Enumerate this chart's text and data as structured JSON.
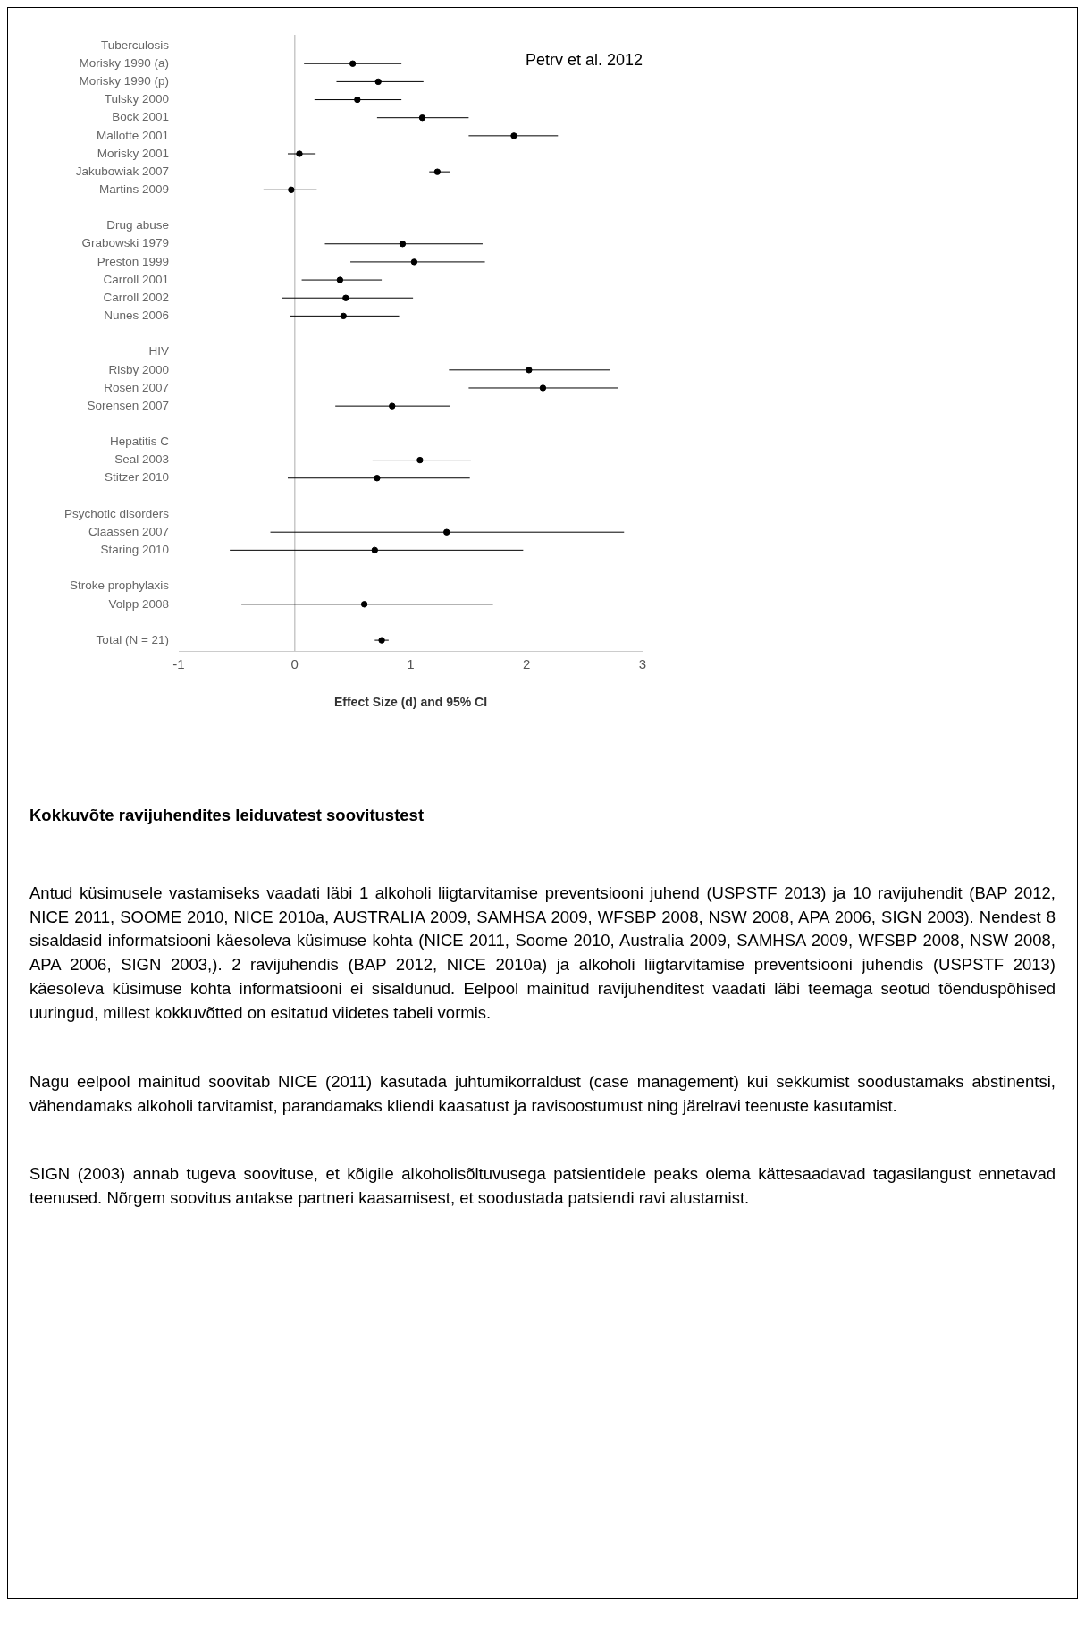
{
  "chart_data": {
    "type": "scatter",
    "orientation": "horizontal",
    "xlabel": "Effect Size (d) and 95% CI",
    "categories": [
      "Tuberculosis",
      "Morisky 1990 (a)",
      "Morisky 1990 (p)",
      "Tulsky 2000",
      "Bock 2001",
      "Mallotte 2001",
      "Morisky 2001",
      "Jakubowiak 2007",
      "Martins 2009",
      null,
      "Drug abuse",
      "Grabowski 1979",
      "Preston 1999",
      "Carroll 2001",
      "Carroll 2002",
      "Nunes 2006",
      null,
      "HIV",
      "Risby 2000",
      "Rosen 2007",
      "Sorensen 2007",
      null,
      "Hepatitis C",
      "Seal 2003",
      "Stitzer 2010",
      null,
      "Psychotic disorders",
      "Claassen 2007",
      "Staring 2010",
      null,
      "Stroke prophylaxis",
      "Volpp 2008",
      null,
      "Total (N = 21)"
    ],
    "values": [
      null,
      0.5,
      0.72,
      0.54,
      1.1,
      1.89,
      0.04,
      1.23,
      -0.03,
      null,
      null,
      0.93,
      1.03,
      0.39,
      0.44,
      0.42,
      null,
      null,
      2.02,
      2.14,
      0.84,
      null,
      null,
      1.08,
      0.71,
      null,
      null,
      1.31,
      0.69,
      null,
      null,
      0.6,
      null,
      0.75
    ],
    "errors": [
      null,
      [
        0.08,
        0.92
      ],
      [
        0.36,
        1.11
      ],
      [
        0.17,
        0.92
      ],
      [
        0.71,
        1.5
      ],
      [
        1.5,
        2.27
      ],
      [
        -0.06,
        0.18
      ],
      [
        1.16,
        1.34
      ],
      [
        -0.27,
        0.19
      ],
      null,
      null,
      [
        0.26,
        1.62
      ],
      [
        0.48,
        1.64
      ],
      [
        0.06,
        0.75
      ],
      [
        -0.11,
        1.02
      ],
      [
        -0.04,
        0.9
      ],
      null,
      null,
      [
        1.33,
        2.72
      ],
      [
        1.5,
        2.79
      ],
      [
        0.35,
        1.34
      ],
      null,
      null,
      [
        0.67,
        1.52
      ],
      [
        -0.06,
        1.51
      ],
      null,
      null,
      [
        -0.21,
        2.84
      ],
      [
        -0.56,
        1.97
      ],
      null,
      null,
      [
        -0.46,
        1.71
      ],
      null,
      [
        0.69,
        0.81
      ]
    ],
    "color": "#000000",
    "marker": "circle",
    "xlim": [
      -1,
      3
    ],
    "xticks": [
      -1,
      0,
      1,
      2,
      3
    ],
    "ref_lines": [
      {
        "axis": "x",
        "value": 0,
        "color": "#c8c8c8"
      }
    ],
    "grid": false,
    "legend": false,
    "annotations": [
      "Petrv et al. 2012",
      "Kokkuvõte ravijuhendites leiduvatest soovitustest",
      "Antud küsimusele vastamiseks vaadati läbi 1 alkoholi liigtarvitamise preventsiooni juhend (USPSTF 2013) ja 10 ravijuhendit (BAP 2012, NICE 2011, SOOME 2010, NICE 2010a,  AUSTRALIA 2009, SAMHSA 2009, WFSBP 2008, NSW 2008, APA 2006, SIGN 2003). Nendest 8 sisaldasid informatsiooni käesoleva küsimuse kohta (NICE 2011, Soome 2010, Australia 2009, SAMHSA 2009, WFSBP 2008, NSW 2008, APA 2006, SIGN 2003,). 2 ravijuhendis (BAP 2012, NICE 2010a) ja alkoholi liigtarvitamise preventsiooni juhendis (USPSTF 2013) käesoleva küsimuse kohta informatsiooni ei sisaldunud. Eelpool mainitud ravijuhenditest vaadati läbi teemaga seotud tõenduspõhised uuringud, millest kokkuvõtted on esitatud viidetes tabeli vormis.",
      "Nagu eelpool mainitud soovitab NICE (2011) kasutada juhtumikorraldust (case management) kui sekkumist soodustamaks abstinentsi, vähendamaks alkoholi tarvitamist, parandamaks kliendi kaasatust ja ravisoostumust ning järelravi teenuste kasutamist.",
      "SIGN (2003) annab tugeva soovituse, et kõigile alkoholisõltuvusega patsientidele peaks olema kättesaadavad tagasilangust ennetavad teenused. Nõrgem soovitus antakse partneri kaasamisest, et soodustada patsiendi ravi alustamist."
    ]
  }
}
